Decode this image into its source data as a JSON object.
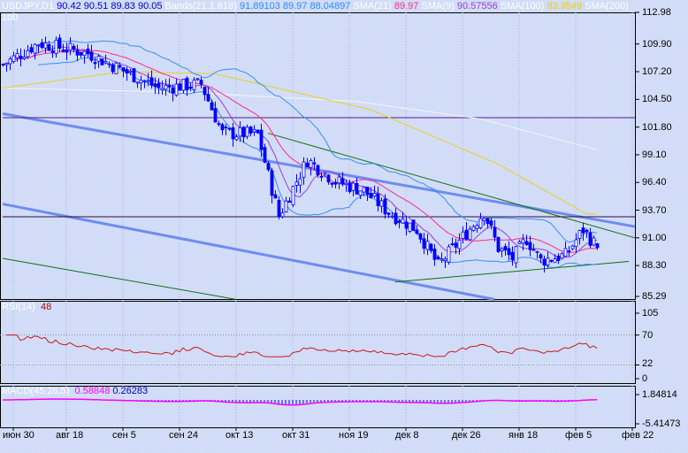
{
  "header": {
    "symbol": "USDJPY,D1",
    "open": "90.42",
    "high": "90.51",
    "low": "89.83",
    "close": "90.05",
    "bands_label": "Bands(21,1.618)",
    "bands_values": "91.89103 89.97 88.04897",
    "sma21_label": "SMA(21)",
    "sma21_value": "89.97",
    "sma9_label": "SMA(9)",
    "sma9_value": "90.57556",
    "sma100_label": "SMA(100)",
    "sma100_value": "93.3549",
    "sma200_label": "SMA(200)",
    "sma200_value": "100"
  },
  "rsi": {
    "label": "RSI(14)",
    "value": "48",
    "ticks": [
      "105",
      "70",
      "22",
      "0"
    ]
  },
  "macd": {
    "label": "MACD(45,26,5)",
    "value1": "0.58848",
    "value2": "0.26283",
    "ticks": [
      "1.84814",
      "-5.41473"
    ]
  },
  "colors": {
    "candle": "#0000ff",
    "sma21": "#ff2a8a",
    "sma9": "#9a3ddc",
    "bands": "#3a8cf0",
    "sma100": "#e8d020",
    "sma200": "#f4f4ff",
    "rsi": "#c81818",
    "macd_hist": "#0000ff",
    "macd_signal": "#ff00ff"
  },
  "chart_data": {
    "type": "candlestick",
    "title": "USDJPY,D1",
    "ylim": [
      85.29,
      112.98
    ],
    "price_ticks": [
      "112.98",
      "109.90",
      "107.20",
      "104.50",
      "101.80",
      "99.10",
      "96.40",
      "93.70",
      "91.00",
      "88.30",
      "85.29"
    ],
    "price_tick_values": [
      112.98,
      109.9,
      107.2,
      104.5,
      101.8,
      99.1,
      96.4,
      93.7,
      91.0,
      88.3,
      85.29
    ],
    "date_ticks": [
      "июн 30",
      "авг 18",
      "сен 5",
      "сен 24",
      "окт 13",
      "окт 31",
      "ноя 19",
      "дек 8",
      "дек 26",
      "янв 18",
      "фев 5",
      "фев 22"
    ],
    "date_tick_index": [
      3,
      18,
      34,
      50,
      66,
      82,
      98,
      114,
      130,
      146,
      162,
      178
    ],
    "close_keypoints": [
      [
        0,
        107.9
      ],
      [
        10,
        110.0
      ],
      [
        24,
        109.0
      ],
      [
        34,
        107.3
      ],
      [
        44,
        105.6
      ],
      [
        56,
        106.0
      ],
      [
        62,
        101.2
      ],
      [
        72,
        101.1
      ],
      [
        78,
        93.1
      ],
      [
        86,
        98.6
      ],
      [
        94,
        96.5
      ],
      [
        102,
        95.6
      ],
      [
        109,
        93.5
      ],
      [
        117,
        91.8
      ],
      [
        123,
        88.3
      ],
      [
        129,
        90.7
      ],
      [
        136,
        93.5
      ],
      [
        140,
        90.0
      ],
      [
        144,
        89.0
      ],
      [
        148,
        90.9
      ],
      [
        152,
        88.8
      ],
      [
        159,
        89.3
      ],
      [
        164,
        91.8
      ],
      [
        168,
        90.05
      ]
    ],
    "sma100_keypoints": [
      [
        0,
        105.6
      ],
      [
        34,
        107.2
      ],
      [
        60,
        107.0
      ],
      [
        104,
        103.5
      ],
      [
        140,
        98.2
      ],
      [
        165,
        93.35
      ]
    ],
    "sma200_keypoints": [
      [
        0,
        105.6
      ],
      [
        50,
        105.2
      ],
      [
        100,
        104.3
      ],
      [
        135,
        102.6
      ],
      [
        168,
        99.6
      ]
    ],
    "trend_lines": [
      {
        "color": "#6e8cf0",
        "width": 3,
        "points": [
          [
            0,
            103.1
          ],
          [
            179,
            92.1
          ]
        ]
      },
      {
        "color": "#6e8cf0",
        "width": 3,
        "points": [
          [
            0,
            94.3
          ],
          [
            139,
            85.0
          ]
        ]
      },
      {
        "color": "#107010",
        "width": 1,
        "points": [
          [
            75,
            101.2
          ],
          [
            179,
            91.0
          ]
        ]
      },
      {
        "color": "#107010",
        "width": 1,
        "points": [
          [
            0,
            89.0
          ],
          [
            66,
            85.0
          ]
        ]
      },
      {
        "color": "#107010",
        "width": 1,
        "points": [
          [
            111,
            86.7
          ],
          [
            177,
            88.7
          ]
        ]
      },
      {
        "color": "#5a1a8a",
        "width": 1,
        "points": [
          [
            0,
            102.71
          ],
          [
            179,
            102.71
          ]
        ]
      },
      {
        "color": "#300a40",
        "width": 1,
        "points": [
          [
            0,
            93.05
          ],
          [
            179,
            93.05
          ]
        ]
      }
    ]
  }
}
